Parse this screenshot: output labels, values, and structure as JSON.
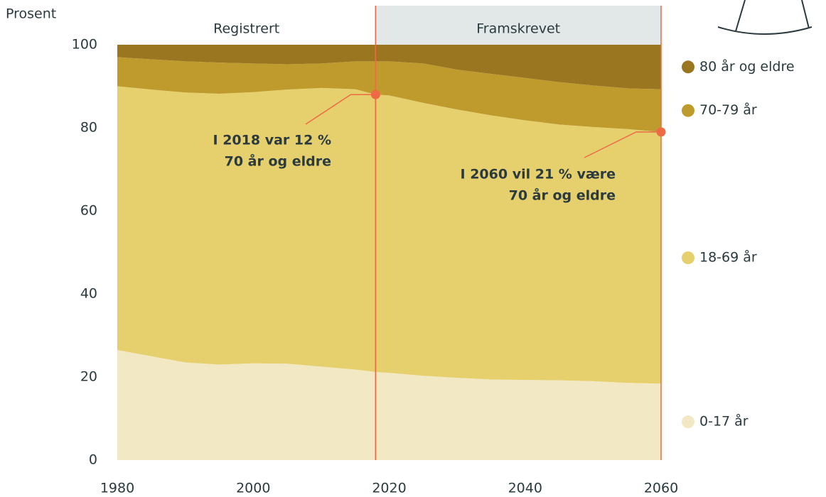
{
  "chart_data": {
    "type": "stacked_area",
    "y_label": "Prosent",
    "x": [
      1980,
      1985,
      1990,
      1995,
      2000,
      2005,
      2010,
      2015,
      2018,
      2020,
      2025,
      2030,
      2035,
      2040,
      2045,
      2050,
      2055,
      2060
    ],
    "series": [
      {
        "name": "0-17 år",
        "color": "#f2e8c4",
        "values": [
          26.5,
          25,
          23.5,
          23,
          23.3,
          23.2,
          22.5,
          21.8,
          21.2,
          21,
          20.3,
          19.8,
          19.4,
          19.3,
          19.2,
          19,
          18.6,
          18.4
        ]
      },
      {
        "name": "18-69 år",
        "color": "#e6d06e",
        "values": [
          63.5,
          64.2,
          65,
          65.2,
          65.3,
          66,
          67.1,
          67.5,
          66.8,
          66.8,
          65.7,
          64.6,
          63.6,
          62.5,
          61.6,
          61.2,
          61.1,
          60.6
        ]
      },
      {
        "name": "70-79 år",
        "color": "#bf9b2e",
        "values": [
          7,
          7.3,
          7.5,
          7.5,
          6.9,
          6.1,
          5.9,
          6.7,
          8,
          8.2,
          9.5,
          9.6,
          10,
          10.2,
          10.2,
          10,
          9.8,
          10.3
        ]
      },
      {
        "name": "80 år og eldre",
        "color": "#9a7620",
        "values": [
          3,
          3.5,
          4,
          4.3,
          4.5,
          4.7,
          4.5,
          4,
          4,
          4,
          4.5,
          6,
          7,
          8,
          9,
          9.8,
          10.5,
          10.7
        ]
      }
    ],
    "xlim": [
      1980,
      2060
    ],
    "xticks": [
      1980,
      2000,
      2020,
      2040,
      2060
    ],
    "ylim": [
      0,
      100
    ],
    "yticks": [
      0,
      20,
      40,
      60,
      80,
      100
    ],
    "regions": [
      {
        "label": "Registrert",
        "from": 1980,
        "to": 2018
      },
      {
        "label": "Framskrevet",
        "from": 2018,
        "to": 2060,
        "shaded": true
      }
    ],
    "annotations": [
      {
        "text": [
          "I 2018 var 12 %",
          "70 år og eldre"
        ],
        "x": 2018,
        "y": 88
      },
      {
        "text": [
          "I 2060 vil 21 % være",
          "70 år og eldre"
        ],
        "x": 2060,
        "y": 79
      }
    ],
    "accent_color": "#ee6a45"
  }
}
